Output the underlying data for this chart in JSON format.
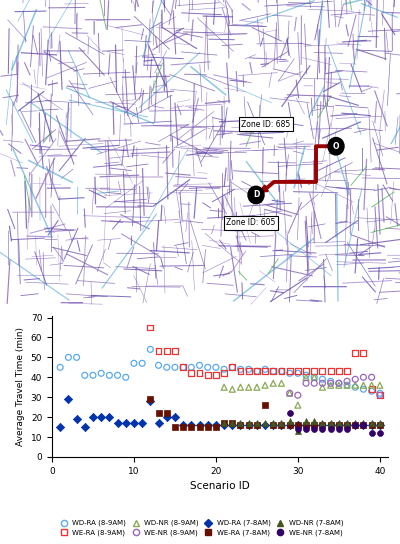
{
  "xlabel": "Scenario ID",
  "ylabel": "Average Travel Time (min)",
  "xlim": [
    0,
    41
  ],
  "ylim": [
    0,
    71
  ],
  "xticks": [
    0,
    10,
    20,
    30,
    40
  ],
  "yticks": [
    0,
    10,
    20,
    30,
    40,
    50,
    60,
    70
  ],
  "WD_RA_89_x": [
    1,
    2,
    3,
    4,
    5,
    6,
    7,
    8,
    9,
    10,
    11,
    12,
    13,
    14,
    15,
    16,
    17,
    18,
    19,
    20,
    21,
    22,
    23,
    24,
    25,
    26,
    27,
    28,
    29,
    30,
    31,
    32,
    33,
    34,
    35,
    36,
    37,
    38,
    39,
    40
  ],
  "WD_RA_89_y": [
    45,
    50,
    50,
    41,
    41,
    42,
    41,
    41,
    40,
    47,
    47,
    54,
    46,
    45,
    45,
    45,
    45,
    46,
    45,
    45,
    44,
    45,
    44,
    44,
    43,
    44,
    43,
    43,
    42,
    42,
    41,
    40,
    39,
    38,
    37,
    36,
    35,
    34,
    33,
    32
  ],
  "WE_RA_89_x": [
    12,
    13,
    14,
    15,
    16,
    17,
    18,
    19,
    20,
    21,
    22,
    23,
    24,
    25,
    26,
    27,
    28,
    29,
    30,
    31,
    32,
    33,
    34,
    35,
    36,
    37,
    38,
    39,
    40
  ],
  "WE_RA_89_y": [
    65,
    53,
    53,
    53,
    45,
    42,
    42,
    41,
    41,
    42,
    45,
    43,
    43,
    43,
    43,
    43,
    43,
    43,
    43,
    43,
    43,
    43,
    43,
    43,
    43,
    52,
    52,
    34,
    31
  ],
  "WD_NR_89_x": [
    21,
    22,
    23,
    24,
    25,
    26,
    27,
    28,
    29,
    30,
    31,
    32,
    33,
    34,
    35,
    36,
    37,
    38,
    39,
    40
  ],
  "WD_NR_89_y": [
    35,
    34,
    35,
    35,
    35,
    36,
    37,
    37,
    32,
    26,
    40,
    40,
    35,
    36,
    36,
    36,
    36,
    36,
    36,
    36
  ],
  "WE_NR_89_x": [
    29,
    30,
    31,
    32,
    33,
    34,
    35,
    36,
    37,
    38,
    39,
    40
  ],
  "WE_NR_89_y": [
    32,
    31,
    37,
    37,
    37,
    37,
    37,
    38,
    39,
    40,
    40,
    31
  ],
  "WD_RA_78_x": [
    1,
    2,
    3,
    4,
    5,
    6,
    7,
    8,
    9,
    10,
    11,
    12,
    13,
    14,
    15,
    16,
    17,
    18,
    19,
    20,
    21,
    22,
    23,
    24,
    25,
    26,
    27,
    28,
    29,
    30,
    31,
    32,
    33,
    34,
    35,
    36,
    37,
    38,
    39,
    40
  ],
  "WD_RA_78_y": [
    15,
    29,
    19,
    15,
    20,
    20,
    20,
    17,
    17,
    17,
    17,
    28,
    17,
    20,
    20,
    16,
    16,
    16,
    16,
    16,
    16,
    16,
    16,
    16,
    16,
    16,
    16,
    16,
    16,
    16,
    16,
    16,
    16,
    16,
    16,
    16,
    16,
    16,
    16,
    16
  ],
  "WE_RA_78_x": [
    12,
    13,
    14,
    15,
    16,
    17,
    18,
    19,
    20,
    21,
    22,
    23,
    24,
    25,
    26,
    27,
    28,
    29,
    30,
    31,
    32,
    33,
    34,
    35,
    36,
    37,
    38,
    39,
    40
  ],
  "WE_RA_78_y": [
    29,
    22,
    22,
    15,
    15,
    15,
    15,
    15,
    15,
    17,
    17,
    16,
    16,
    16,
    26,
    16,
    16,
    16,
    16,
    16,
    16,
    16,
    16,
    16,
    16,
    16,
    16,
    16,
    16
  ],
  "WD_NR_78_x": [
    21,
    22,
    23,
    24,
    25,
    26,
    27,
    28,
    29,
    30,
    31,
    32,
    33,
    34,
    35,
    36,
    37,
    38,
    39,
    40
  ],
  "WD_NR_78_y": [
    17,
    17,
    17,
    17,
    17,
    17,
    17,
    17,
    18,
    13,
    18,
    18,
    17,
    17,
    17,
    17,
    17,
    17,
    17,
    17
  ],
  "WE_NR_78_x": [
    29,
    30,
    31,
    32,
    33,
    34,
    35,
    36,
    37,
    38,
    39,
    40
  ],
  "WE_NR_78_y": [
    22,
    14,
    14,
    14,
    14,
    14,
    14,
    14,
    16,
    16,
    12,
    12
  ],
  "color_WD_RA": "#5AAAEE",
  "color_WE_RA": "#EE3333",
  "color_WD_NR": "#88AA55",
  "color_WE_NR": "#9966BB",
  "color_WD_RA_dark": "#0033AA",
  "color_WE_RA_dark": "#661100",
  "color_WD_NR_dark": "#445522",
  "color_WE_NR_dark": "#330066",
  "map_bg": "#FFFFFF",
  "zone_685_x": 0.84,
  "zone_685_y": 0.52,
  "zone_605_x": 0.64,
  "zone_605_y": 0.36
}
